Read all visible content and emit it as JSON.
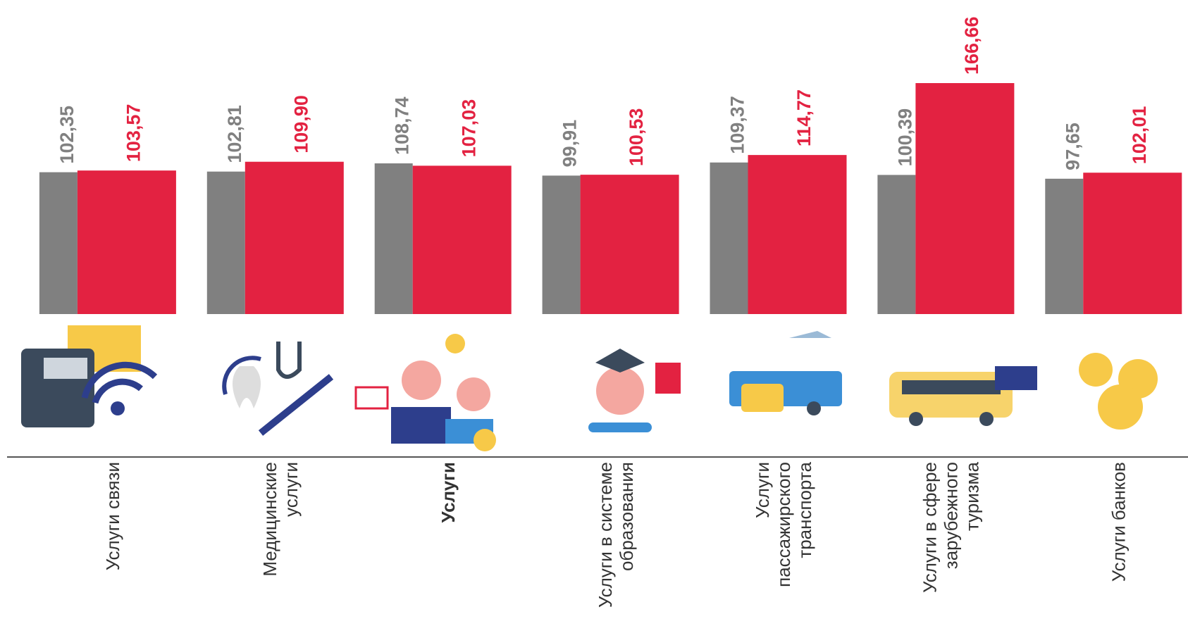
{
  "chart_data": {
    "type": "bar",
    "categories": [
      [
        "Услуги связи"
      ],
      [
        "Медицинские",
        "услуги"
      ],
      [
        "Услуги"
      ],
      [
        "Услуги в системе",
        "образования"
      ],
      [
        "Услуги",
        "пассажирского",
        "транспорта"
      ],
      [
        "Услуги в сфере",
        "зарубежного",
        "туризма"
      ],
      [
        "Услуги банков"
      ]
    ],
    "bold_category": 2,
    "series": [
      {
        "color": "#808080",
        "values": [
          102.35,
          102.81,
          108.74,
          99.91,
          109.37,
          100.39,
          97.65
        ],
        "value_labels": [
          "102,35",
          "102,81",
          "108,74",
          "99,91",
          "109,37",
          "100,39",
          "97,65"
        ]
      },
      {
        "color": "#e32241",
        "values": [
          103.57,
          109.9,
          107.03,
          100.53,
          114.77,
          166.66,
          102.01
        ],
        "value_labels": [
          "103,57",
          "109,90",
          "107,03",
          "100,53",
          "114,77",
          "166,66",
          "102,01"
        ]
      }
    ]
  }
}
